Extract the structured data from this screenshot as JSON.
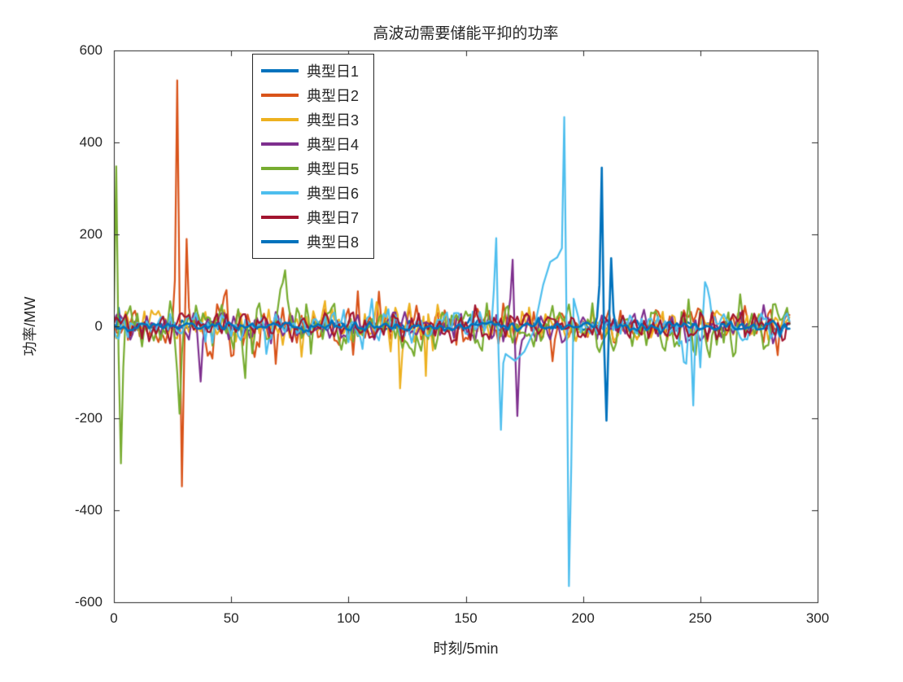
{
  "figure": {
    "background": "#FFFFFF",
    "axis_color": "#262626"
  },
  "chart_data": {
    "type": "line",
    "title": "高波动需要储能平抑的功率",
    "xlabel": "时刻/5min",
    "ylabel": "功率/MW",
    "xlim": [
      0,
      300
    ],
    "ylim": [
      -600,
      600
    ],
    "xticks": [
      0,
      50,
      100,
      150,
      200,
      250,
      300
    ],
    "yticks": [
      -600,
      -400,
      -200,
      0,
      200,
      400,
      600
    ],
    "n_points": 288,
    "grid": false,
    "legend": {
      "position": "upper-left-inside",
      "entries": [
        "典型日1",
        "典型日2",
        "典型日3",
        "典型日4",
        "典型日5",
        "典型日6",
        "典型日7",
        "典型日8"
      ]
    },
    "series": [
      {
        "name": "典型日1",
        "color": "#0072BD",
        "width": 2.6,
        "amp": 12,
        "seed": 11,
        "spikes": [
          [
            2,
            40
          ]
        ],
        "regions": []
      },
      {
        "name": "典型日2",
        "color": "#D95319",
        "width": 2.2,
        "amp": 42,
        "seed": 22,
        "spikes": [
          [
            26,
            100
          ],
          [
            27,
            535
          ],
          [
            28,
            60
          ],
          [
            29,
            -348
          ],
          [
            30,
            -60
          ],
          [
            31,
            190
          ],
          [
            32,
            40
          ]
        ],
        "regions": [
          [
            38,
            56,
            85
          ],
          [
            58,
            75,
            60
          ]
        ]
      },
      {
        "name": "典型日3",
        "color": "#EDB120",
        "width": 2.2,
        "amp": 38,
        "seed": 33,
        "spikes": [
          [
            122,
            -135
          ],
          [
            133,
            -108
          ]
        ],
        "regions": [
          [
            108,
            142,
            65
          ]
        ]
      },
      {
        "name": "典型日4",
        "color": "#7E2F8E",
        "width": 2.2,
        "amp": 33,
        "seed": 44,
        "spikes": [
          [
            36,
            -50
          ],
          [
            37,
            -120
          ],
          [
            38,
            -30
          ],
          [
            169,
            60
          ],
          [
            170,
            145
          ],
          [
            171,
            -40
          ],
          [
            172,
            -195
          ],
          [
            173,
            -60
          ]
        ],
        "regions": [
          [
            160,
            176,
            55
          ]
        ]
      },
      {
        "name": "典型日5",
        "color": "#77AC30",
        "width": 2.2,
        "amp": 52,
        "seed": 55,
        "spikes": [
          [
            0,
            30
          ],
          [
            1,
            348
          ],
          [
            2,
            -60
          ],
          [
            3,
            -298
          ],
          [
            4,
            -90
          ],
          [
            27,
            -100
          ],
          [
            28,
            -190
          ],
          [
            29,
            -60
          ],
          [
            72,
            95
          ],
          [
            73,
            122
          ],
          [
            74,
            60
          ]
        ],
        "regions": [
          [
            55,
            85,
            75
          ],
          [
            235,
            290,
            68
          ]
        ]
      },
      {
        "name": "典型日6",
        "color": "#4DBEEE",
        "width": 2.2,
        "amp": 33,
        "seed": 66,
        "spikes": [
          [
            162,
            80
          ],
          [
            163,
            192
          ],
          [
            164,
            -60
          ],
          [
            165,
            -225
          ],
          [
            166,
            -80
          ],
          [
            167,
            -60
          ],
          [
            171,
            -75
          ],
          [
            175,
            -55
          ],
          [
            179,
            -10
          ],
          [
            183,
            90
          ],
          [
            186,
            140
          ],
          [
            189,
            150
          ],
          [
            191,
            170
          ],
          [
            192,
            455
          ],
          [
            193,
            0
          ],
          [
            194,
            -565
          ],
          [
            195,
            -300
          ],
          [
            196,
            60
          ],
          [
            198,
            20
          ]
        ],
        "regions": [
          [
            238,
            254,
            90
          ]
        ]
      },
      {
        "name": "典型日7",
        "color": "#A2142F",
        "width": 2.2,
        "amp": 30,
        "seed": 77,
        "spikes": [],
        "regions": []
      },
      {
        "name": "典型日8",
        "color": "#0072BD",
        "width": 2.6,
        "amp": 10,
        "seed": 88,
        "spikes": [
          [
            206,
            20
          ],
          [
            207,
            90
          ],
          [
            208,
            345
          ],
          [
            209,
            -40
          ],
          [
            210,
            -205
          ],
          [
            211,
            -10
          ],
          [
            212,
            148
          ],
          [
            213,
            30
          ]
        ],
        "regions": []
      }
    ]
  }
}
